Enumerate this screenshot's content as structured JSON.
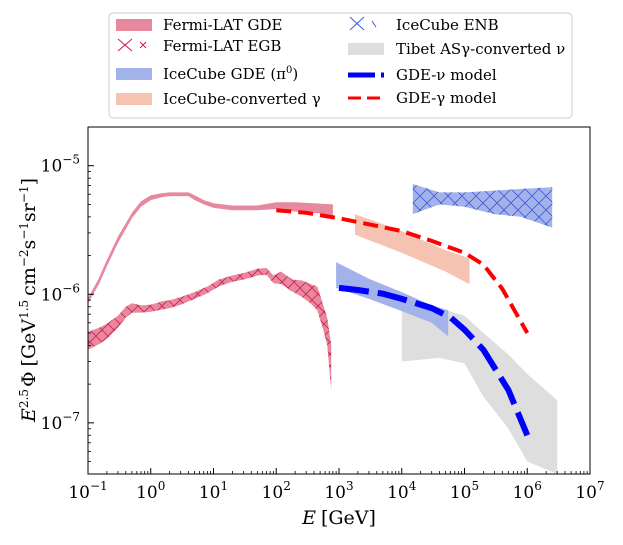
{
  "chart_data": {
    "type": "area",
    "title": "",
    "xlabel": {
      "italic": "E",
      "unit": "[GeV]"
    },
    "ylabel": {
      "base": "E",
      "sup": "2.5",
      "phi": "Φ",
      "unit": "[GeV",
      "u1": "1.5",
      "u2": "cm",
      "u3": "−2",
      "u4": "s",
      "u5": "−1",
      "u6": "sr",
      "u7": "−1",
      "close": "]"
    },
    "x_scale": "log",
    "y_scale": "log",
    "xlim": [
      0.1,
      10000000
    ],
    "ylim": [
      4e-08,
      2e-05
    ],
    "x_ticks": [
      {
        "v": 0.1,
        "m": "10",
        "e": "−1"
      },
      {
        "v": 1,
        "m": "10",
        "e": "0"
      },
      {
        "v": 10,
        "m": "10",
        "e": "1"
      },
      {
        "v": 100,
        "m": "10",
        "e": "2"
      },
      {
        "v": 1000,
        "m": "10",
        "e": "3"
      },
      {
        "v": 10000,
        "m": "10",
        "e": "4"
      },
      {
        "v": 100000,
        "m": "10",
        "e": "5"
      },
      {
        "v": 1000000,
        "m": "10",
        "e": "6"
      },
      {
        "v": 10000000,
        "m": "10",
        "e": "7"
      }
    ],
    "y_ticks": [
      {
        "v": 1e-07,
        "m": "10",
        "e": "−7"
      },
      {
        "v": 1e-06,
        "m": "10",
        "e": "−6"
      },
      {
        "v": 1e-05,
        "m": "10",
        "e": "−5"
      }
    ],
    "colors": {
      "fermi": "#e8889f",
      "fermi_hatch": "#d11e4a",
      "icecube_gde": "#a3b2ea",
      "icecube_conv": "#f5c3b1",
      "icecube_enb": "#a3b2ea",
      "enb_hatch": "#3f5bd6",
      "tibet": "#dedede",
      "nu_model": "#0000ff",
      "gamma_model": "#ff0000"
    },
    "legend": {
      "position": "top",
      "entries": [
        {
          "key": "fermi_gde",
          "label": "Fermi-LAT GDE"
        },
        {
          "key": "fermi_egb",
          "label": "Fermi-LAT EGB"
        },
        {
          "key": "icecube_gde",
          "label": "IceCube GDE (π",
          "sup": "0",
          "tail": ")"
        },
        {
          "key": "icecube_conv",
          "label": "IceCube-converted γ"
        },
        {
          "key": "icecube_enb",
          "label": "IceCube ENB"
        },
        {
          "key": "tibet",
          "label": "Tibet ASγ-converted ν"
        },
        {
          "key": "gde_nu",
          "label": "GDE-ν model"
        },
        {
          "key": "gde_gamma",
          "label": "GDE-γ model"
        }
      ]
    },
    "series": [
      {
        "name": "Fermi-LAT GDE",
        "kind": "band",
        "points": [
          [
            0.1,
            8.5e-07,
            9.3e-07
          ],
          [
            0.15,
            1.2e-06,
            1.34e-06
          ],
          [
            0.2,
            1.65e-06,
            1.85e-06
          ],
          [
            0.3,
            2.5e-06,
            2.8e-06
          ],
          [
            0.5,
            3.9e-06,
            4.3e-06
          ],
          [
            0.7,
            4.8e-06,
            5.3e-06
          ],
          [
            1,
            5.4e-06,
            5.9e-06
          ],
          [
            1.5,
            5.7e-06,
            6.1e-06
          ],
          [
            2,
            5.8e-06,
            6.2e-06
          ],
          [
            3,
            5.8e-06,
            6.2e-06
          ],
          [
            4,
            5.8e-06,
            6.2e-06
          ],
          [
            5,
            5.4e-06,
            5.9e-06
          ],
          [
            7,
            5e-06,
            5.4e-06
          ],
          [
            10,
            4.7e-06,
            5.1e-06
          ],
          [
            20,
            4.5e-06,
            4.9e-06
          ],
          [
            50,
            4.5e-06,
            4.9e-06
          ],
          [
            100,
            4.6e-06,
            5.2e-06
          ],
          [
            200,
            4.4e-06,
            5.2e-06
          ],
          [
            400,
            4.3e-06,
            5.1e-06
          ],
          [
            800,
            4.1e-06,
            5e-06
          ]
        ]
      },
      {
        "name": "Fermi-LAT EGB",
        "kind": "band_hatched",
        "points": [
          [
            0.1,
            3.7e-07,
            5.1e-07
          ],
          [
            0.15,
            4.1e-07,
            5.5e-07
          ],
          [
            0.2,
            4.5e-07,
            5.9e-07
          ],
          [
            0.3,
            5.5e-07,
            6.8e-07
          ],
          [
            0.4,
            6.6e-07,
            8e-07
          ],
          [
            0.5,
            7.2e-07,
            8.5e-07
          ],
          [
            0.7,
            7.2e-07,
            8.2e-07
          ],
          [
            1,
            7.3e-07,
            8.3e-07
          ],
          [
            1.5,
            7.6e-07,
            8.8e-07
          ],
          [
            2,
            7.8e-07,
            9e-07
          ],
          [
            3,
            8.3e-07,
            9.5e-07
          ],
          [
            5,
            9.2e-07,
            1.04e-06
          ],
          [
            8,
            1.02e-06,
            1.15e-06
          ],
          [
            12,
            1.15e-06,
            1.3e-06
          ],
          [
            20,
            1.25e-06,
            1.4e-06
          ],
          [
            30,
            1.3e-06,
            1.46e-06
          ],
          [
            50,
            1.4e-06,
            1.58e-06
          ],
          [
            70,
            1.42e-06,
            1.6e-06
          ],
          [
            90,
            1.22e-06,
            1.4e-06
          ],
          [
            120,
            1.2e-06,
            1.5e-06
          ],
          [
            180,
            1.05e-06,
            1.3e-06
          ],
          [
            260,
            9.5e-07,
            1.28e-06
          ],
          [
            350,
            8.5e-07,
            1.2e-06
          ],
          [
            450,
            7.5e-07,
            1.15e-06
          ],
          [
            550,
            5.5e-07,
            8.5e-07
          ],
          [
            650,
            4e-07,
            6.5e-07
          ],
          [
            750,
            1.8e-07,
            4e-07
          ]
        ]
      },
      {
        "name": "IceCube GDE (π0)",
        "kind": "band",
        "points": [
          [
            900,
            1.12e-06,
            1.78e-06
          ],
          [
            3000,
            9.2e-07,
            1.32e-06
          ],
          [
            10000,
            7.4e-07,
            1.04e-06
          ],
          [
            30000,
            6e-07,
            8.2e-07
          ],
          [
            55000,
            4.7e-07,
            7.5e-07
          ]
        ]
      },
      {
        "name": "IceCube-converted γ",
        "kind": "band",
        "points": [
          [
            1800,
            2.9e-06,
            4.2e-06
          ],
          [
            10000,
            2.1e-06,
            3.1e-06
          ],
          [
            50000,
            1.5e-06,
            2.2e-06
          ],
          [
            120000,
            1.2e-06,
            1.9e-06
          ]
        ]
      },
      {
        "name": "IceCube ENB",
        "kind": "band_hatched",
        "points": [
          [
            15000,
            4.2e-06,
            7.2e-06
          ],
          [
            40000,
            5e-06,
            6.2e-06
          ],
          [
            100000,
            4.8e-06,
            6.2e-06
          ],
          [
            300000,
            4.2e-06,
            6.4e-06
          ],
          [
            800000,
            4e-06,
            6.6e-06
          ],
          [
            2500000,
            3.3e-06,
            6.8e-06
          ]
        ]
      },
      {
        "name": "Tibet ASγ-converted ν",
        "kind": "band",
        "points": [
          [
            10000,
            3e-07,
            8.5e-07
          ],
          [
            40000,
            3.2e-07,
            7.8e-07
          ],
          [
            100000,
            2.9e-07,
            6.8e-07
          ],
          [
            200000,
            1.6e-07,
            5e-07
          ],
          [
            500000,
            9e-08,
            3.4e-07
          ],
          [
            1000000,
            5e-08,
            2.4e-07
          ],
          [
            3000000,
            4e-08,
            1.5e-07
          ]
        ]
      },
      {
        "name": "GDE-ν model",
        "kind": "dashed_line",
        "points": [
          [
            1000,
            1.12e-06
          ],
          [
            2000,
            1.08e-06
          ],
          [
            5000,
            1.01e-06
          ],
          [
            10000,
            9.2e-07
          ],
          [
            30000,
            7.8e-07
          ],
          [
            60000,
            6.6e-07
          ],
          [
            100000,
            5.3e-07
          ],
          [
            200000,
            3.7e-07
          ],
          [
            500000,
            1.8e-07
          ],
          [
            1000000,
            8e-08
          ]
        ]
      },
      {
        "name": "GDE-γ model",
        "kind": "dashed_line",
        "points": [
          [
            100,
            4.5e-06
          ],
          [
            300,
            4.3e-06
          ],
          [
            1000,
            3.9e-06
          ],
          [
            3000,
            3.5e-06
          ],
          [
            10000,
            3.1e-06
          ],
          [
            30000,
            2.6e-06
          ],
          [
            100000,
            2.1e-06
          ],
          [
            200000,
            1.7e-06
          ],
          [
            400000,
            1.1e-06
          ],
          [
            1000000,
            5e-07
          ]
        ]
      }
    ]
  }
}
